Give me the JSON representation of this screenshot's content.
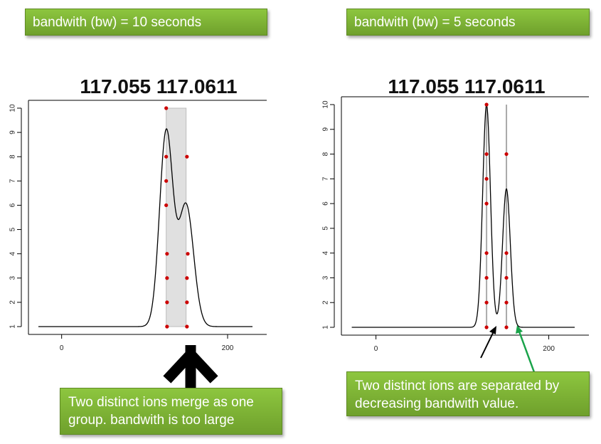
{
  "left": {
    "bw_label": "bandwith (bw) = 10 seconds",
    "note": "Two distinct ions merge as one group. bandwith is too large"
  },
  "right": {
    "bw_label": "bandwith (bw) = 5 seconds",
    "note": "Two distinct ions are separated by decreasing bandwith value."
  },
  "colors": {
    "note_box": "#7cb342",
    "points": "#cc0000",
    "group_shade": "#e0e0e0",
    "arrow_black": "#000000",
    "arrow_green": "#1aa34a"
  },
  "chart_data": [
    {
      "type": "line",
      "title": "117.055 117.0611",
      "xlim": [
        -40,
        230
      ],
      "ylim": [
        1,
        10
      ],
      "x_ticks": [
        0,
        200
      ],
      "y_ticks": [
        1,
        2,
        3,
        4,
        5,
        6,
        7,
        8,
        9,
        10
      ],
      "density": {
        "baseline": 1,
        "components": [
          {
            "center": 126,
            "sd": 8,
            "height": 8.0
          },
          {
            "center": 150,
            "sd": 9,
            "height": 5.0
          }
        ]
      },
      "group_region": {
        "x": [
          126,
          150
        ],
        "y": [
          1,
          10
        ]
      },
      "points": [
        {
          "x": 126,
          "y": 10
        },
        {
          "x": 126,
          "y": 8
        },
        {
          "x": 126,
          "y": 7
        },
        {
          "x": 126,
          "y": 6
        },
        {
          "x": 127,
          "y": 4
        },
        {
          "x": 127,
          "y": 3
        },
        {
          "x": 127,
          "y": 2
        },
        {
          "x": 127,
          "y": 1
        },
        {
          "x": 151,
          "y": 8
        },
        {
          "x": 152,
          "y": 4
        },
        {
          "x": 151,
          "y": 3
        },
        {
          "x": 151,
          "y": 2
        },
        {
          "x": 151,
          "y": 1
        }
      ]
    },
    {
      "type": "line",
      "title": "117.055 117.0611",
      "xlim": [
        -40,
        230
      ],
      "ylim": [
        1,
        10
      ],
      "x_ticks": [
        0,
        200
      ],
      "y_ticks": [
        1,
        2,
        3,
        4,
        5,
        6,
        7,
        8,
        9,
        10
      ],
      "density": {
        "baseline": 1,
        "components": [
          {
            "center": 128,
            "sd": 4.5,
            "height": 9.0
          },
          {
            "center": 151,
            "sd": 4.5,
            "height": 5.6
          }
        ]
      },
      "group_lines": [
        128,
        151
      ],
      "points": [
        {
          "x": 128,
          "y": 10
        },
        {
          "x": 128,
          "y": 8
        },
        {
          "x": 128,
          "y": 7
        },
        {
          "x": 128,
          "y": 6
        },
        {
          "x": 128,
          "y": 4
        },
        {
          "x": 128,
          "y": 3
        },
        {
          "x": 128,
          "y": 2
        },
        {
          "x": 128,
          "y": 1
        },
        {
          "x": 151,
          "y": 8
        },
        {
          "x": 151,
          "y": 4
        },
        {
          "x": 151,
          "y": 3
        },
        {
          "x": 151,
          "y": 2
        },
        {
          "x": 151,
          "y": 1
        }
      ]
    }
  ]
}
